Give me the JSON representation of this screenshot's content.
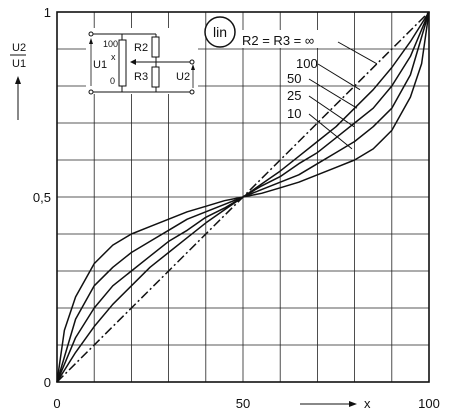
{
  "chart_data": {
    "type": "line",
    "scale_badge": "lin",
    "y_axis": {
      "label_numerator": "U2",
      "label_denominator": "U1",
      "range": [
        0,
        1
      ],
      "ticks": [
        {
          "value": 0,
          "label": "0"
        },
        {
          "value": 0.5,
          "label": "0,5"
        },
        {
          "value": 1,
          "label": "1"
        }
      ],
      "grid_step": 0.1
    },
    "x_axis": {
      "label": "x",
      "range": [
        0,
        100
      ],
      "ticks": [
        {
          "value": 0,
          "label": "0"
        },
        {
          "value": 50,
          "label": "50"
        },
        {
          "value": 100,
          "label": "100"
        }
      ],
      "grid_step": 10
    },
    "grid": true,
    "legend_title": "R2 = R3 = ∞",
    "legend_labels": [
      "100",
      "50",
      "25",
      "10"
    ],
    "series": [
      {
        "name": "R2 = R3 = ∞",
        "style": "dash-dot",
        "x": [
          0,
          100
        ],
        "y": [
          0,
          1
        ]
      },
      {
        "name": "100",
        "style": "solid",
        "x": [
          0,
          5,
          10,
          15,
          20,
          25,
          30,
          35,
          40,
          45,
          50,
          55,
          60,
          65,
          70,
          75,
          80,
          85,
          90,
          95,
          100
        ],
        "y": [
          0,
          0.08,
          0.15,
          0.21,
          0.26,
          0.31,
          0.35,
          0.39,
          0.43,
          0.465,
          0.5,
          0.535,
          0.57,
          0.61,
          0.65,
          0.69,
          0.74,
          0.79,
          0.85,
          0.92,
          1
        ]
      },
      {
        "name": "50",
        "style": "solid",
        "x": [
          0,
          5,
          10,
          15,
          20,
          25,
          30,
          35,
          40,
          45,
          50,
          55,
          60,
          65,
          70,
          75,
          80,
          85,
          90,
          95,
          100
        ],
        "y": [
          0,
          0.12,
          0.2,
          0.26,
          0.3,
          0.34,
          0.38,
          0.41,
          0.445,
          0.47,
          0.5,
          0.53,
          0.555,
          0.59,
          0.62,
          0.66,
          0.7,
          0.74,
          0.8,
          0.88,
          1
        ]
      },
      {
        "name": "25",
        "style": "solid",
        "x": [
          0,
          5,
          10,
          15,
          20,
          25,
          30,
          35,
          40,
          45,
          50,
          55,
          60,
          65,
          70,
          75,
          80,
          85,
          90,
          95,
          100
        ],
        "y": [
          0,
          0.17,
          0.26,
          0.31,
          0.35,
          0.38,
          0.41,
          0.44,
          0.46,
          0.48,
          0.5,
          0.52,
          0.54,
          0.56,
          0.59,
          0.62,
          0.65,
          0.69,
          0.74,
          0.83,
          1
        ]
      },
      {
        "name": "10",
        "style": "solid",
        "x": [
          0,
          2,
          5,
          10,
          15,
          20,
          25,
          30,
          35,
          40,
          45,
          50,
          55,
          60,
          65,
          70,
          75,
          80,
          85,
          90,
          95,
          98,
          100
        ],
        "y": [
          0,
          0.14,
          0.23,
          0.32,
          0.37,
          0.4,
          0.42,
          0.44,
          0.46,
          0.475,
          0.49,
          0.5,
          0.51,
          0.525,
          0.54,
          0.56,
          0.58,
          0.6,
          0.63,
          0.68,
          0.77,
          0.86,
          1
        ]
      }
    ]
  },
  "circuit": {
    "u1": "U1",
    "u2": "U2",
    "r2": "R2",
    "r3": "R3",
    "scale_top": "100",
    "scale_bottom": "0",
    "wiper": "x"
  }
}
